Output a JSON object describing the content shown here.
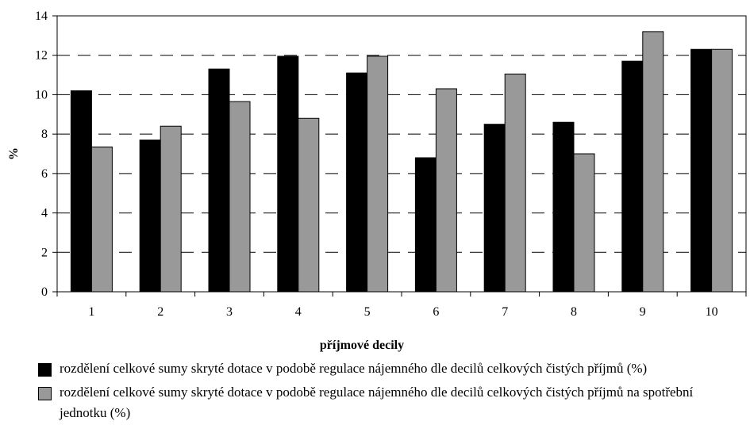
{
  "chart_data": {
    "type": "bar",
    "categories": [
      "1",
      "2",
      "3",
      "4",
      "5",
      "6",
      "7",
      "8",
      "9",
      "10"
    ],
    "series": [
      {
        "name": "rozdělení celkové sumy skryté dotace v podobě regulace nájemného dle decilů celkových čistých příjmů (%)",
        "color": "#000000",
        "values": [
          10.2,
          7.7,
          11.3,
          11.95,
          11.1,
          6.8,
          8.5,
          8.6,
          11.7,
          12.3
        ]
      },
      {
        "name": "rozdělení celkové sumy skryté dotace v podobě regulace nájemného dle decilů celkových čistých příjmů na spotřební jednotku (%)",
        "color": "#999999",
        "values": [
          7.35,
          8.4,
          9.65,
          8.8,
          11.95,
          10.3,
          11.05,
          7.0,
          13.2,
          12.3
        ]
      }
    ],
    "xlabel": "příjmové decily",
    "ylabel": "%",
    "ylim": [
      0,
      14
    ],
    "yticks": [
      0,
      2,
      4,
      6,
      8,
      10,
      12,
      14
    ],
    "grid": true
  }
}
